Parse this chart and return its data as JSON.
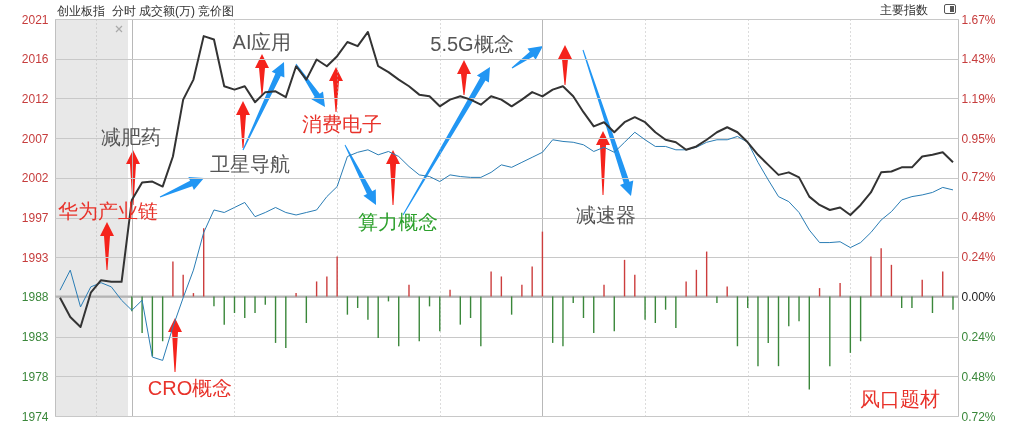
{
  "chart_data": {
    "type": "line",
    "title": "创业板指  分时 成交额(万) 竞价图",
    "categories": [
      null,
      null,
      null,
      null,
      null,
      null,
      null,
      null,
      null,
      null,
      null,
      null,
      null,
      null,
      null,
      null,
      null,
      null,
      null,
      null,
      null,
      null,
      null,
      null,
      null,
      null,
      null,
      null,
      null,
      null,
      null,
      null,
      null,
      null,
      null,
      null,
      null,
      null,
      null,
      null,
      null,
      null,
      null,
      null,
      null,
      null,
      null,
      null,
      null,
      null,
      null,
      null,
      null,
      null,
      null,
      null,
      null,
      null,
      null,
      null,
      null,
      null,
      null,
      null,
      null,
      null,
      null,
      null,
      null,
      null,
      null,
      null,
      null,
      null,
      null,
      null,
      null,
      null,
      null,
      null,
      null,
      null,
      null,
      null,
      null,
      null,
      null,
      null
    ],
    "series": [
      {
        "type": "bar",
        "axis": "y2",
        "color": "#cc3d3d",
        "values": [
          null,
          null,
          null,
          null,
          null,
          null,
          null,
          null,
          null,
          null,
          null,
          0.21,
          0.13,
          0.02,
          0.41,
          null,
          null,
          null,
          null,
          null,
          null,
          null,
          null,
          0.02,
          null,
          0.09,
          0.12,
          0.24,
          null,
          null,
          null,
          null,
          null,
          null,
          0.07,
          null,
          null,
          null,
          0.04,
          null,
          null,
          null,
          0.15,
          0.12,
          null,
          0.07,
          0.18,
          0.39,
          null,
          null,
          null,
          null,
          null,
          0.07,
          null,
          0.22,
          0.13,
          null,
          null,
          null,
          null,
          0.09,
          0.16,
          0.27,
          null,
          0.06,
          null,
          null,
          null,
          null,
          null,
          null,
          null,
          null,
          0.05,
          null,
          0.08,
          null,
          null,
          0.24,
          0.29,
          0.19,
          null,
          null,
          0.1,
          null,
          0.15,
          null
        ]
      },
      {
        "type": "bar",
        "axis": "y2",
        "color": "#3a873a",
        "values": [
          null,
          null,
          null,
          null,
          null,
          null,
          null,
          -0.09,
          -0.22,
          -0.36,
          -0.27,
          null,
          null,
          null,
          null,
          -0.06,
          -0.17,
          -0.1,
          -0.13,
          -0.1,
          -0.05,
          -0.28,
          -0.31,
          null,
          -0.16,
          null,
          null,
          null,
          -0.11,
          -0.07,
          -0.14,
          -0.25,
          -0.03,
          -0.3,
          null,
          -0.27,
          -0.06,
          -0.21,
          null,
          -0.17,
          -0.13,
          -0.3,
          null,
          null,
          -0.11,
          null,
          null,
          null,
          -0.28,
          -0.3,
          -0.04,
          -0.13,
          -0.22,
          null,
          -0.21,
          null,
          null,
          -0.14,
          -0.16,
          -0.08,
          -0.19,
          null,
          null,
          null,
          -0.04,
          null,
          -0.3,
          -0.07,
          -0.42,
          -0.28,
          -0.42,
          -0.18,
          -0.15,
          -0.56,
          null,
          -0.42,
          null,
          -0.34,
          -0.27,
          null,
          null,
          null,
          -0.07,
          -0.07,
          null,
          -0.1,
          null,
          -0.08
        ]
      },
      {
        "color": "#2a7db5",
        "values": [
          1988.8,
          1991.2,
          1986.8,
          1989.2,
          1989.7,
          1989.2,
          1987.6,
          1986.4,
          1987.6,
          1980.8,
          1980.4,
          1984.4,
          1987.9,
          1991.2,
          1995.7,
          1998.4,
          1998.1,
          1998.7,
          1999.3,
          1997.6,
          1998.1,
          1998.7,
          1998.1,
          1997.8,
          1998.1,
          1998.4,
          2000.0,
          2001.2,
          2004.8,
          2005.3,
          2005.6,
          2005.0,
          2005.4,
          2004.8,
          2003.6,
          2002.6,
          2002.4,
          2001.8,
          2002.6,
          2002.4,
          2002.3,
          2002.3,
          2002.9,
          2003.8,
          2003.5,
          2004.1,
          2004.7,
          2005.3,
          2006.8,
          2006.6,
          2006.5,
          2006.2,
          2005.4,
          2005.9,
          2005.3,
          2006.5,
          2007.7,
          2006.8,
          2006.0,
          2006.0,
          2005.6,
          2005.6,
          2005.9,
          2006.5,
          2006.8,
          2006.8,
          2007.2,
          2006.5,
          2004.1,
          2002.0,
          2000.0,
          1999.4,
          1998.1,
          1996.0,
          1994.5,
          1994.5,
          1994.6,
          1993.9,
          1994.5,
          1995.7,
          1997.2,
          1998.2,
          1999.6,
          2000.0,
          2000.2,
          2000.5,
          2001.1,
          2000.8
        ]
      },
      {
        "color": "#333333",
        "values": [
          1987.9,
          1985.6,
          1984.4,
          1988.5,
          1990.0,
          1989.8,
          1989.8,
          1999.6,
          2001.7,
          2001.8,
          2001.2,
          2004.8,
          2011.6,
          2014.0,
          2019.2,
          2018.8,
          2013.2,
          2012.8,
          2013.2,
          2011.3,
          2012.5,
          2012.6,
          2011.9,
          2015.6,
          2014.0,
          2016.4,
          2015.6,
          2016.8,
          2018.5,
          2018.0,
          2019.7,
          2015.6,
          2014.9,
          2014.0,
          2013.2,
          2012.2,
          2012.0,
          2010.8,
          2011.6,
          2012.0,
          2011.6,
          2011.0,
          2012.0,
          2011.6,
          2010.8,
          2011.6,
          2012.5,
          2012.0,
          2012.8,
          2013.2,
          2012.0,
          2010.1,
          2008.4,
          2008.9,
          2007.7,
          2008.9,
          2009.5,
          2008.9,
          2007.7,
          2006.8,
          2006.5,
          2005.6,
          2006.0,
          2006.8,
          2007.7,
          2008.3,
          2007.7,
          2006.5,
          2005.0,
          2003.8,
          2002.6,
          2002.9,
          2002.3,
          2000.0,
          1999.0,
          1998.4,
          1998.7,
          1997.8,
          1999.0,
          2000.5,
          2002.9,
          2003.0,
          2003.5,
          2003.5,
          2004.8,
          2005.0,
          2005.3,
          2004.1
        ]
      }
    ],
    "ylim": [
      1973.75,
      2021.25
    ],
    "yticks": [
      {
        "value": 1973.75,
        "label": "1974"
      },
      {
        "value": 1978.5,
        "label": "1978"
      },
      {
        "value": 1983.25,
        "label": "1983"
      },
      {
        "value": 1988,
        "label": "1988"
      },
      {
        "value": 1992.75,
        "label": "1993"
      },
      {
        "value": 1997.5,
        "label": "1997"
      },
      {
        "value": 2002.25,
        "label": "2002"
      },
      {
        "value": 2007,
        "label": "2007"
      },
      {
        "value": 2011.75,
        "label": "2012"
      },
      {
        "value": 2016.5,
        "label": "2016"
      },
      {
        "value": 2021.25,
        "label": "2021"
      }
    ],
    "y2lim": [
      -0.72,
      1.67
    ],
    "y2ticks": [
      {
        "value": -0.72,
        "label": "0.72%"
      },
      {
        "value": -0.48,
        "label": "0.48%"
      },
      {
        "value": -0.24,
        "label": "0.24%"
      },
      {
        "value": 0,
        "label": "0.00%"
      },
      {
        "value": 0.24,
        "label": "0.24%"
      },
      {
        "value": 0.48,
        "label": "0.48%"
      },
      {
        "value": 0.72,
        "label": "0.72%"
      },
      {
        "value": 0.95,
        "label": "0.95%"
      },
      {
        "value": 1.19,
        "label": "1.19%"
      },
      {
        "value": 1.43,
        "label": "1.43%"
      },
      {
        "value": 1.67,
        "label": "1.67%"
      }
    ],
    "ref_lines": [
      {
        "axis": "y2",
        "value": 0,
        "color": "#b4b4b4"
      }
    ],
    "grid": true,
    "annotations": [
      "减肥药",
      "华为产业链",
      "卫星导航",
      "AI应用",
      "消费电子",
      "5.5G概念",
      "算力概念",
      "减速器",
      "CRO概念",
      "风口题材",
      "主要指数"
    ]
  }
}
